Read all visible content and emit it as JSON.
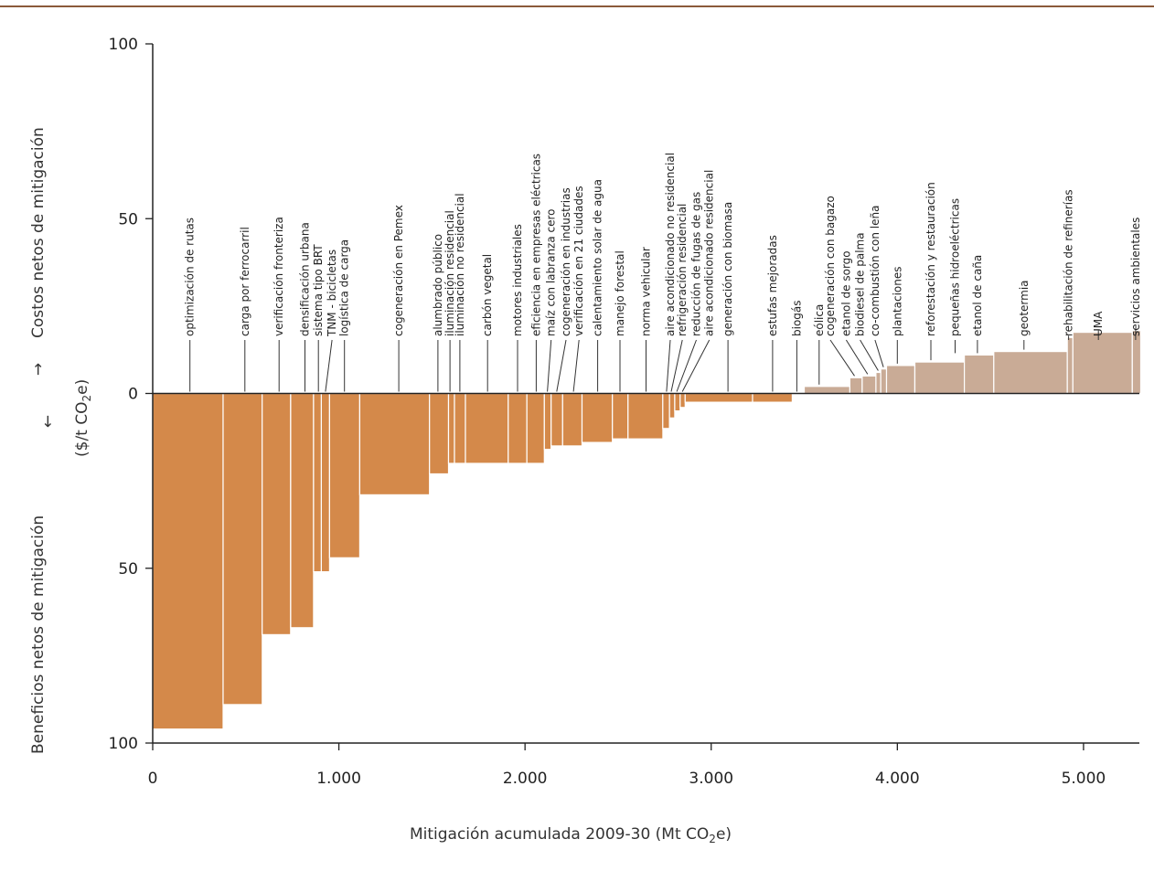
{
  "chart_data": {
    "type": "bar",
    "variant": "marginal-abatement-cost-curve",
    "title": "",
    "xlabel_main": "Mitigación acumulada 2009-30 (Mt CO",
    "xlabel_sub": "2",
    "xlabel_end": "e)",
    "ylabel_top": "Costos netos de mitigación",
    "ylabel_bottom": "Beneficios netos de mitigación",
    "yunit_main": "($/t CO",
    "yunit_sub": "2",
    "yunit_end": "e)",
    "arrow_up": "→",
    "arrow_down": "→",
    "xlim": [
      0,
      5300
    ],
    "ylim": [
      -100,
      100
    ],
    "x_ticks": [
      {
        "value": 0,
        "label": "0"
      },
      {
        "value": 1000,
        "label": "1.000"
      },
      {
        "value": 2000,
        "label": "2.000"
      },
      {
        "value": 3000,
        "label": "3.000"
      },
      {
        "value": 4000,
        "label": "4.000"
      },
      {
        "value": 5000,
        "label": "5.000"
      }
    ],
    "y_ticks": [
      {
        "value": 100,
        "label": "100"
      },
      {
        "value": 50,
        "label": "50"
      },
      {
        "value": 0,
        "label": "0"
      },
      {
        "value": -50,
        "label": "50"
      },
      {
        "value": -100,
        "label": "100"
      }
    ],
    "colors": {
      "benefit": "#d4894a",
      "cost": "#c9ab96",
      "axis": "#222222",
      "rule": "#8b5a3a"
    },
    "bars": [
      {
        "name": "optimización de rutas",
        "x0": 0,
        "x1": 378,
        "value": -96
      },
      {
        "name": "carga por ferrocarril",
        "x0": 378,
        "x1": 588,
        "value": -89
      },
      {
        "name": "verificación fronteriza",
        "x0": 588,
        "x1": 741,
        "value": -69
      },
      {
        "name": "densificación urbana",
        "x0": 741,
        "x1": 864,
        "value": -67
      },
      {
        "name": "sistema tipo BRT",
        "x0": 864,
        "x1": 906,
        "value": -51
      },
      {
        "name": "TNM - bicicletas",
        "x0": 906,
        "x1": 950,
        "value": -51
      },
      {
        "name": "logística de carga",
        "x0": 950,
        "x1": 1112,
        "value": -47
      },
      {
        "name": "cogeneración en Pemex",
        "x0": 1112,
        "x1": 1487,
        "value": -29
      },
      {
        "name": "alumbrado público",
        "x0": 1487,
        "x1": 1589,
        "value": -23
      },
      {
        "name": "iluminación residencial",
        "x0": 1589,
        "x1": 1621,
        "value": -20
      },
      {
        "name": "iluminación no residencial",
        "x0": 1621,
        "x1": 1680,
        "value": -20
      },
      {
        "name": "carbón vegetal",
        "x0": 1680,
        "x1": 1910,
        "value": -20
      },
      {
        "name": "motores industriales",
        "x0": 1910,
        "x1": 2010,
        "value": -20
      },
      {
        "name": "eficiencia en empresas eléctricas",
        "x0": 2010,
        "x1": 2104,
        "value": -20
      },
      {
        "name": "maíz con labranza cero",
        "x0": 2104,
        "x1": 2140,
        "value": -16
      },
      {
        "name": "cogeneración en industrias",
        "x0": 2140,
        "x1": 2202,
        "value": -15
      },
      {
        "name": "verificación en 21 ciudades",
        "x0": 2202,
        "x1": 2306,
        "value": -15
      },
      {
        "name": "calentamiento solar de agua",
        "x0": 2306,
        "x1": 2469,
        "value": -14
      },
      {
        "name": "manejo forestal",
        "x0": 2469,
        "x1": 2553,
        "value": -13
      },
      {
        "name": "norma vehicular",
        "x0": 2553,
        "x1": 2740,
        "value": -13
      },
      {
        "name": "aire acondicionado no residencial",
        "x0": 2740,
        "x1": 2776,
        "value": -10
      },
      {
        "name": "refrigeración residencial",
        "x0": 2776,
        "x1": 2804,
        "value": -7
      },
      {
        "name": "reducción de fugas de gas",
        "x0": 2804,
        "x1": 2833,
        "value": -5
      },
      {
        "name": "aire acondicionado residencial",
        "x0": 2833,
        "x1": 2860,
        "value": -4
      },
      {
        "name": "generación con biomasa",
        "x0": 2860,
        "x1": 3222,
        "value": -2.5
      },
      {
        "name": "estufas mejoradas",
        "x0": 3222,
        "x1": 3435,
        "value": -2.5
      },
      {
        "name": "biogás",
        "x0": 3435,
        "x1": 3500,
        "value": 0
      },
      {
        "name": "eólica",
        "x0": 3500,
        "x1": 3745,
        "value": 2
      },
      {
        "name": "cogeneración con bagazo",
        "x0": 3745,
        "x1": 3811,
        "value": 4.5
      },
      {
        "name": "etanol de sorgo",
        "x0": 3811,
        "x1": 3885,
        "value": 5
      },
      {
        "name": "biodiesel de palma",
        "x0": 3885,
        "x1": 3911,
        "value": 6
      },
      {
        "name": "co-combustión con leña",
        "x0": 3911,
        "x1": 3942,
        "value": 7
      },
      {
        "name": "plantaciones",
        "x0": 3942,
        "x1": 4094,
        "value": 8
      },
      {
        "name": "reforestación y restauración",
        "x0": 4094,
        "x1": 4360,
        "value": 9
      },
      {
        "name": "pequeñas hidroeléctricas",
        "x0": 4360,
        "x1": 4518,
        "value": 11
      },
      {
        "name": "etanol de caña",
        "x0": 4518,
        "x1": 4518,
        "value": 11
      },
      {
        "name": "geotermia",
        "x0": 4518,
        "x1": 4913,
        "value": 12
      },
      {
        "name": "rehabilitación de refinerías",
        "x0": 4913,
        "x1": 4943,
        "value": 16
      },
      {
        "name": "UMA",
        "x0": 4943,
        "x1": 5262,
        "value": 17.5
      },
      {
        "name": "servicios ambientales",
        "x0": 5262,
        "x1": 5307,
        "value": 18
      }
    ],
    "leaders": [
      {
        "name": "optimización de rutas",
        "lx": 200,
        "tx": 200
      },
      {
        "name": "carga por ferrocarril",
        "lx": 495,
        "tx": 495
      },
      {
        "name": "verificación fronteriza",
        "lx": 679,
        "tx": 679
      },
      {
        "name": "densificación urbana",
        "lx": 818,
        "tx": 818
      },
      {
        "name": "sistema tipo BRT",
        "lx": 890,
        "tx": 890
      },
      {
        "name": "TNM - bicicletas",
        "lx": 928,
        "tx": 963
      },
      {
        "name": "logística de carga",
        "lx": 1030,
        "tx": 1030
      },
      {
        "name": "cogeneración en Pemex",
        "lx": 1322,
        "tx": 1322
      },
      {
        "name": "alumbrado público",
        "lx": 1532,
        "tx": 1532
      },
      {
        "name": "iluminación residencial",
        "lx": 1597,
        "tx": 1597
      },
      {
        "name": "iluminación no residencial",
        "lx": 1650,
        "tx": 1650
      },
      {
        "name": "carbón vegetal",
        "lx": 1799,
        "tx": 1799
      },
      {
        "name": "motores industriales",
        "lx": 1960,
        "tx": 1960
      },
      {
        "name": "eficiencia en empresas eléctricas",
        "lx": 2060,
        "tx": 2060
      },
      {
        "name": "maíz con labranza cero",
        "lx": 2120,
        "tx": 2140
      },
      {
        "name": "cogeneración en industrias",
        "lx": 2170,
        "tx": 2220
      },
      {
        "name": "verificación en 21 ciudades",
        "lx": 2260,
        "tx": 2290
      },
      {
        "name": "calentamiento solar de agua",
        "lx": 2390,
        "tx": 2390
      },
      {
        "name": "manejo forestal",
        "lx": 2510,
        "tx": 2510
      },
      {
        "name": "norma vehicular",
        "lx": 2650,
        "tx": 2650
      },
      {
        "name": "aire acondicionado no residencial",
        "lx": 2760,
        "tx": 2780
      },
      {
        "name": "refrigeración residencial",
        "lx": 2785,
        "tx": 2845
      },
      {
        "name": "reducción de fugas de gas",
        "lx": 2815,
        "tx": 2920
      },
      {
        "name": "aire acondicionado residencial",
        "lx": 2845,
        "tx": 2990
      },
      {
        "name": "generación con biomasa",
        "lx": 3090,
        "tx": 3090
      },
      {
        "name": "estufas mejoradas",
        "lx": 3330,
        "tx": 3330
      },
      {
        "name": "biogás",
        "lx": 3460,
        "tx": 3460
      },
      {
        "name": "eólica",
        "lx": 3580,
        "tx": 3580
      },
      {
        "name": "cogeneración con bagazo",
        "lx": 3770,
        "tx": 3640
      },
      {
        "name": "etanol de sorgo",
        "lx": 3840,
        "tx": 3725
      },
      {
        "name": "biodiesel de palma",
        "lx": 3897,
        "tx": 3800
      },
      {
        "name": "co-combustión con leña",
        "lx": 3925,
        "tx": 3880
      },
      {
        "name": "plantaciones",
        "lx": 4000,
        "tx": 4000
      },
      {
        "name": "reforestación y restauración",
        "lx": 4180,
        "tx": 4180
      },
      {
        "name": "pequeñas hidroeléctricas",
        "lx": 4310,
        "tx": 4310
      },
      {
        "name": "etanol de caña",
        "lx": 4430,
        "tx": 4430
      },
      {
        "name": "geotermia",
        "lx": 4680,
        "tx": 4680
      },
      {
        "name": "rehabilitación de refinerías",
        "lx": 4920,
        "tx": 4920
      },
      {
        "name": "UMA",
        "lx": 5080,
        "tx": 5080
      },
      {
        "name": "servicios ambientales",
        "lx": 5280,
        "tx": 5280
      }
    ]
  }
}
